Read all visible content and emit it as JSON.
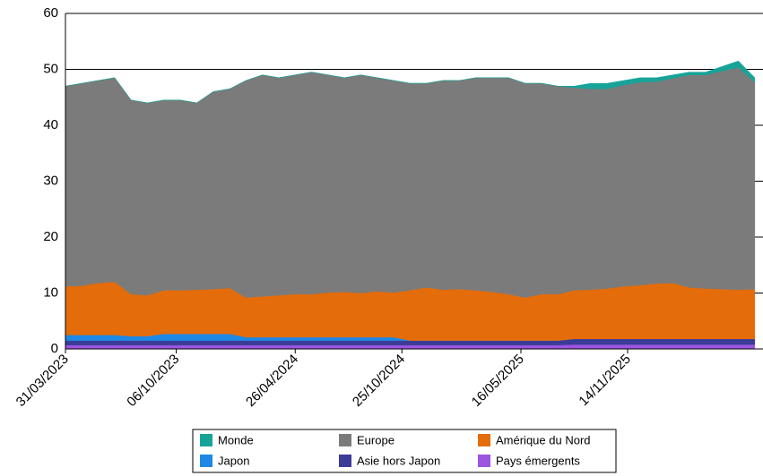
{
  "chart_data": {
    "type": "stacked_area",
    "x": [
      "31/03/2023",
      "28/04/2023",
      "26/05/2023",
      "23/06/2023",
      "21/07/2023",
      "18/08/2023",
      "15/09/2023",
      "13/10/2023",
      "10/11/2023",
      "08/12/2023",
      "05/01/2024",
      "02/02/2024",
      "01/03/2024",
      "29/03/2024",
      "26/04/2024",
      "24/05/2024",
      "21/06/2024",
      "19/07/2024",
      "16/08/2024",
      "13/09/2024",
      "11/10/2024",
      "08/11/2024",
      "06/12/2024",
      "03/01/2025",
      "31/01/2025",
      "28/02/2025",
      "28/03/2025",
      "25/04/2025",
      "23/05/2025",
      "20/06/2025",
      "18/07/2025",
      "15/08/2025",
      "12/09/2025",
      "10/10/2025",
      "07/11/2025",
      "05/12/2025",
      "02/01/2026",
      "30/01/2026",
      "27/02/2026",
      "27/03/2026",
      "24/04/2026",
      "22/05/2026",
      "19/06/2026"
    ],
    "series": [
      {
        "name": "Monde",
        "color": "#17a398",
        "values": [
          0,
          0,
          0,
          0,
          0,
          0,
          0,
          0,
          0,
          0,
          0,
          0,
          0,
          0,
          0,
          0,
          0,
          0,
          0,
          0,
          0,
          0,
          0,
          0,
          0,
          0,
          0,
          0,
          0,
          0,
          0,
          0.3,
          1,
          1,
          0.8,
          0.8,
          0.7,
          0.6,
          0.5,
          0.5,
          0.8,
          1.2,
          0.8
        ]
      },
      {
        "name": "Europe",
        "color": "#7b7b7b",
        "values": [
          35.8,
          36.2,
          36.2,
          36.5,
          34.7,
          34.4,
          34,
          34,
          33.4,
          35.3,
          35.6,
          38.8,
          39.6,
          38.9,
          39.2,
          39.7,
          38.9,
          38.3,
          39,
          38.2,
          37.9,
          37,
          36.5,
          37.4,
          37.3,
          38,
          38.3,
          38.7,
          38.3,
          37.7,
          37.2,
          36.2,
          35.9,
          35.7,
          36,
          36.3,
          36.1,
          36.6,
          38,
          38.2,
          39,
          39.7,
          37
        ]
      },
      {
        "name": "Amérique du Nord",
        "color": "#e46c0a",
        "values": [
          8.7,
          8.8,
          9.3,
          9.5,
          7.5,
          7.3,
          7.8,
          7.8,
          7.9,
          8,
          8.2,
          7.1,
          7.3,
          7.5,
          7.7,
          7.7,
          8,
          8.1,
          7.9,
          8.2,
          8,
          9,
          9.5,
          9.1,
          9.2,
          9,
          8.7,
          8.3,
          7.7,
          8.3,
          8.3,
          8.7,
          8.8,
          9,
          9.4,
          9.6,
          9.9,
          10,
          9.2,
          9,
          8.9,
          8.8,
          8.9
        ]
      },
      {
        "name": "Japon",
        "color": "#1e88e5",
        "values": [
          1,
          1,
          1,
          1,
          0.8,
          0.8,
          1.2,
          1.2,
          1.2,
          1.2,
          1.2,
          0.6,
          0.6,
          0.6,
          0.6,
          0.6,
          0.6,
          0.6,
          0.6,
          0.6,
          0.6,
          0,
          0,
          0,
          0,
          0,
          0,
          0,
          0,
          0,
          0,
          0,
          0,
          0,
          0,
          0,
          0,
          0,
          0,
          0,
          0,
          0,
          0
        ]
      },
      {
        "name": "Asie hors Japon",
        "color": "#3b3b98",
        "values": [
          0.8,
          0.8,
          0.8,
          0.8,
          0.8,
          0.8,
          0.8,
          0.8,
          0.8,
          0.8,
          0.8,
          0.8,
          0.8,
          0.8,
          0.8,
          0.8,
          0.8,
          0.8,
          0.8,
          0.8,
          0.8,
          0.8,
          0.8,
          0.8,
          0.8,
          0.8,
          0.8,
          0.8,
          0.8,
          0.8,
          0.8,
          1,
          1,
          1,
          1,
          1,
          1,
          1,
          1,
          1,
          1,
          1,
          1
        ]
      },
      {
        "name": "Pays émergents",
        "color": "#9b55e0",
        "values": [
          0.7,
          0.7,
          0.7,
          0.7,
          0.7,
          0.7,
          0.7,
          0.7,
          0.7,
          0.7,
          0.7,
          0.7,
          0.7,
          0.7,
          0.7,
          0.7,
          0.7,
          0.7,
          0.7,
          0.7,
          0.7,
          0.7,
          0.7,
          0.7,
          0.7,
          0.7,
          0.7,
          0.7,
          0.7,
          0.7,
          0.7,
          0.8,
          0.8,
          0.8,
          0.8,
          0.8,
          0.8,
          0.8,
          0.8,
          0.8,
          0.8,
          0.8,
          0.8
        ]
      }
    ],
    "xlim": [
      "31/03/2023",
      "03/07/2026"
    ],
    "xticks": [
      "31/03/2023",
      "06/10/2023",
      "26/04/2024",
      "25/10/2024",
      "16/05/2025",
      "14/11/2025"
    ],
    "ylim": [
      0,
      60
    ],
    "yticks": [
      0,
      10,
      20,
      30,
      40,
      50,
      60
    ],
    "grid": true
  }
}
